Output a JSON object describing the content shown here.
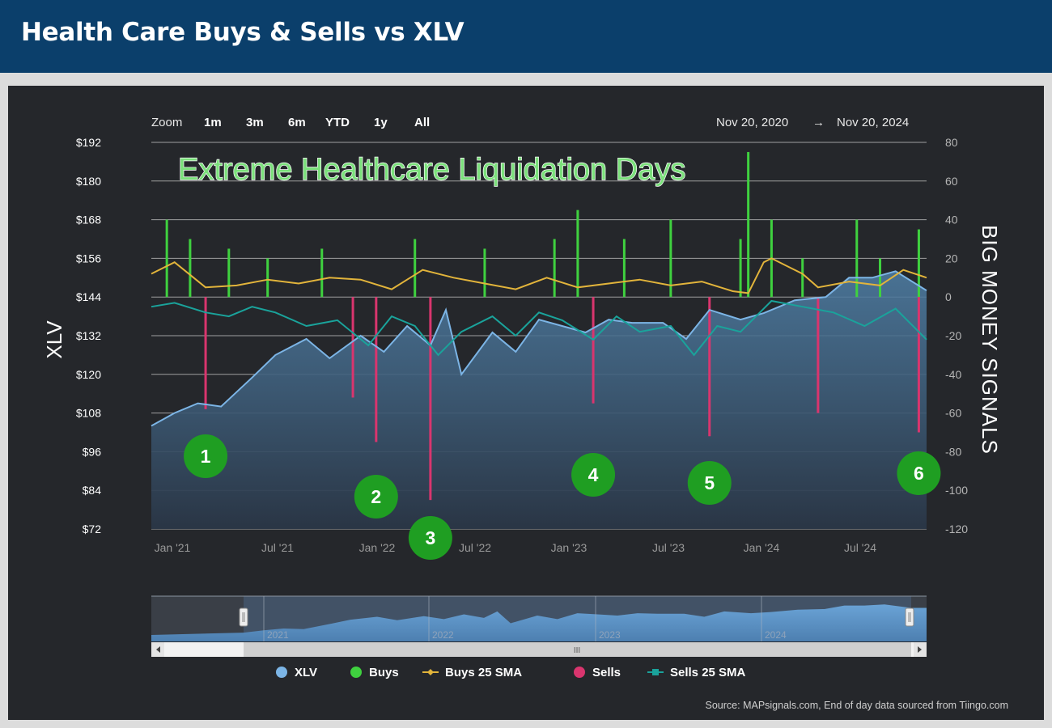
{
  "header": {
    "title": "Health Care Buys & Sells vs XLV"
  },
  "zoom": {
    "label": "Zoom",
    "options": [
      "1m",
      "3m",
      "6m",
      "YTD",
      "1y",
      "All"
    ]
  },
  "date_range": {
    "from": "Nov 20, 2020",
    "arrow": "→",
    "to": "Nov 20, 2024"
  },
  "annotation_title": "Extreme Healthcare Liquidation Days",
  "markers": [
    "1",
    "2",
    "3",
    "4",
    "5",
    "6"
  ],
  "navigator": {
    "years": [
      "2021",
      "2022",
      "2023",
      "2024"
    ],
    "grip": "III"
  },
  "legend": [
    {
      "label": "XLV",
      "color": "#7cb5e6"
    },
    {
      "label": "Buys",
      "color": "#3fd13f"
    },
    {
      "label": "Buys 25 SMA",
      "color": "#e2b43b"
    },
    {
      "label": "Sells",
      "color": "#d9356e"
    },
    {
      "label": "Sells 25 SMA",
      "color": "#1aa39b"
    }
  ],
  "source": "Source: MAPsignals.com, End of day data sourced from Tiingo.com",
  "colors": {
    "xlv": "#7cb5e6",
    "buys": "#3fd13f",
    "buys_sma": "#e2b43b",
    "sells": "#d9356e",
    "sells_sma": "#1aa39b",
    "marker": "#1f9e22"
  },
  "chart_data": {
    "type": "line",
    "left_axis": {
      "label": "XLV",
      "ticks": [
        "$192",
        "$180",
        "$168",
        "$156",
        "$144",
        "$132",
        "$120",
        "$108",
        "$96",
        "$84",
        "$72"
      ],
      "ylim": [
        72,
        192
      ]
    },
    "right_axis": {
      "label": "BIG MONEY SIGNALS",
      "ticks": [
        "80",
        "60",
        "40",
        "20",
        "0",
        "-20",
        "-40",
        "-60",
        "-80",
        "-100",
        "-120"
      ],
      "ylim": [
        -120,
        80
      ]
    },
    "x_ticks": [
      "Jan '21",
      "Jul '21",
      "Jan '22",
      "Jul '22",
      "Jan '23",
      "Jul '23",
      "Jan '24",
      "Jul '24"
    ],
    "xlv": {
      "x": [
        0,
        0.03,
        0.06,
        0.09,
        0.13,
        0.16,
        0.2,
        0.23,
        0.27,
        0.3,
        0.33,
        0.36,
        0.38,
        0.4,
        0.44,
        0.47,
        0.5,
        0.53,
        0.56,
        0.59,
        0.62,
        0.66,
        0.69,
        0.72,
        0.76,
        0.79,
        0.83,
        0.87,
        0.9,
        0.93,
        0.96,
        1.0
      ],
      "values": [
        104,
        108,
        111,
        110,
        119,
        126,
        131,
        125,
        132,
        127,
        135,
        129,
        140,
        120,
        133,
        127,
        137,
        135,
        133,
        137,
        136,
        136,
        131,
        140,
        137,
        139,
        143,
        144,
        150,
        150,
        152,
        146
      ]
    },
    "buys_sma": {
      "x": [
        0,
        0.03,
        0.07,
        0.11,
        0.15,
        0.19,
        0.23,
        0.27,
        0.31,
        0.35,
        0.39,
        0.43,
        0.47,
        0.51,
        0.55,
        0.59,
        0.63,
        0.67,
        0.71,
        0.75,
        0.77,
        0.79,
        0.8,
        0.82,
        0.84,
        0.86,
        0.9,
        0.94,
        0.97,
        1.0
      ],
      "values": [
        12,
        18,
        5,
        6,
        9,
        7,
        10,
        9,
        4,
        14,
        10,
        7,
        4,
        10,
        5,
        7,
        9,
        6,
        8,
        3,
        2,
        18,
        20,
        16,
        12,
        5,
        8,
        6,
        14,
        10
      ]
    },
    "sells_sma": {
      "x": [
        0,
        0.03,
        0.07,
        0.1,
        0.13,
        0.16,
        0.2,
        0.24,
        0.28,
        0.31,
        0.34,
        0.37,
        0.4,
        0.44,
        0.47,
        0.5,
        0.53,
        0.57,
        0.6,
        0.63,
        0.67,
        0.7,
        0.73,
        0.76,
        0.78,
        0.8,
        0.84,
        0.88,
        0.92,
        0.96,
        1.0
      ],
      "values": [
        -5,
        -3,
        -8,
        -10,
        -5,
        -8,
        -15,
        -12,
        -25,
        -10,
        -15,
        -30,
        -18,
        -10,
        -20,
        -8,
        -12,
        -22,
        -10,
        -18,
        -15,
        -30,
        -15,
        -18,
        -10,
        -2,
        -5,
        -8,
        -15,
        -6,
        -22
      ]
    },
    "buys": {
      "x": [
        0.02,
        0.05,
        0.1,
        0.15,
        0.22,
        0.34,
        0.43,
        0.52,
        0.55,
        0.61,
        0.67,
        0.76,
        0.77,
        0.8,
        0.84,
        0.91,
        0.94,
        0.99
      ],
      "values": [
        40,
        30,
        25,
        20,
        25,
        30,
        25,
        30,
        45,
        30,
        40,
        30,
        75,
        40,
        20,
        40,
        20,
        35
      ]
    },
    "sells": {
      "x": [
        0.07,
        0.26,
        0.29,
        0.36,
        0.57,
        0.72,
        0.86,
        0.99
      ],
      "values": [
        -58,
        -52,
        -75,
        -105,
        -55,
        -72,
        -60,
        -70
      ]
    },
    "numbered_events": {
      "labels": [
        "1",
        "2",
        "3",
        "4",
        "5",
        "6"
      ],
      "x": [
        0.07,
        0.29,
        0.36,
        0.57,
        0.72,
        0.99
      ]
    }
  }
}
